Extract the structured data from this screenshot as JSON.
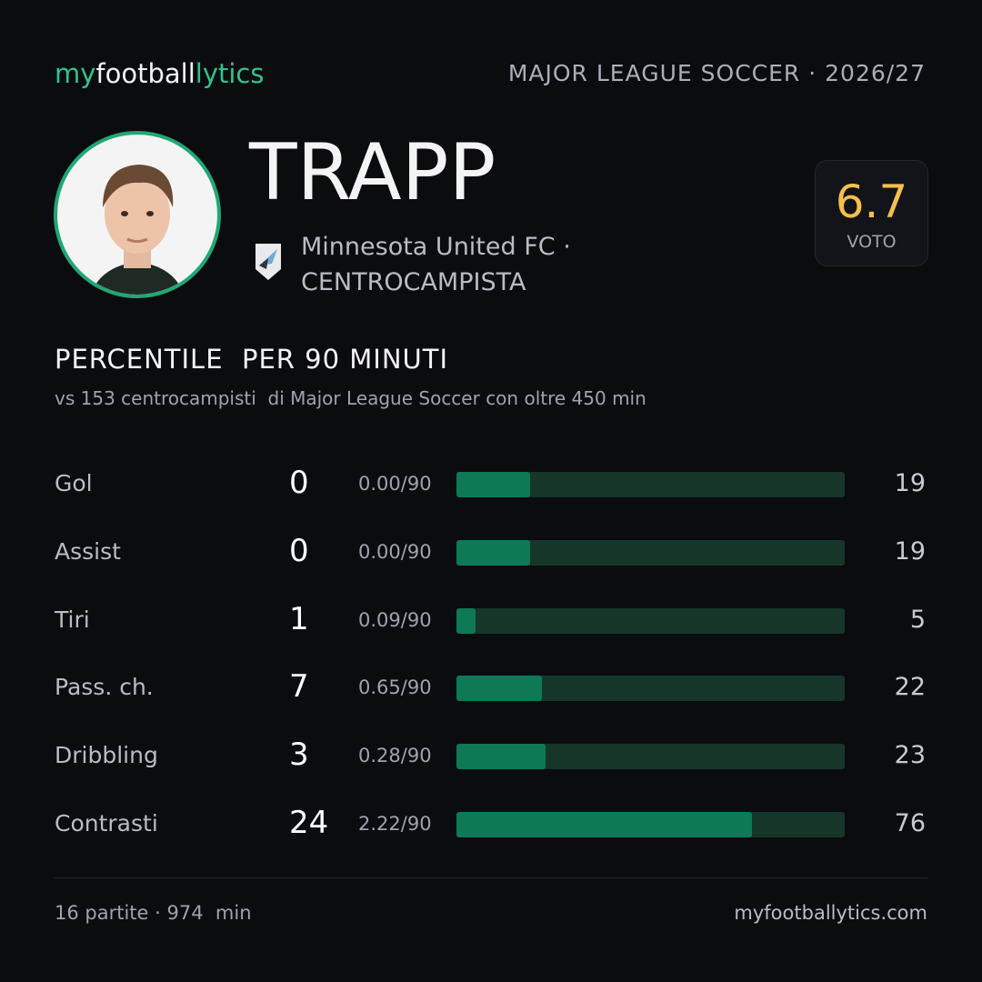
{
  "header": {
    "logo": [
      "my",
      "football",
      "lytics"
    ],
    "league": "MAJOR LEAGUE SOCCER · 2026/27"
  },
  "player": {
    "name": "TRAPP",
    "team": "Minnesota United FC ·",
    "role": "CENTROCAMPISTA",
    "rating": 6.7,
    "rating_label": "VOTO"
  },
  "section": {
    "title": "PERCENTILE  PER 90 MINUTI",
    "subtitle": "vs 153 centrocampisti  di Major League Soccer con oltre 450 min"
  },
  "stats": {
    "xlim": [
      0,
      100
    ],
    "rows": [
      {
        "label": "Gol",
        "total": 0,
        "per90": "0.00/90",
        "percentile": 19
      },
      {
        "label": "Assist",
        "total": 0,
        "per90": "0.00/90",
        "percentile": 19
      },
      {
        "label": "Tiri",
        "total": 1,
        "per90": "0.09/90",
        "percentile": 5
      },
      {
        "label": "Pass. ch.",
        "total": 7,
        "per90": "0.65/90",
        "percentile": 22
      },
      {
        "label": "Dribbling",
        "total": 3,
        "per90": "0.28/90",
        "percentile": 23
      },
      {
        "label": "Contrasti",
        "total": 24,
        "per90": "2.22/90",
        "percentile": 76
      }
    ]
  },
  "footer": {
    "summary": "16 partite · 974  min",
    "site": "myfootballytics.com"
  }
}
